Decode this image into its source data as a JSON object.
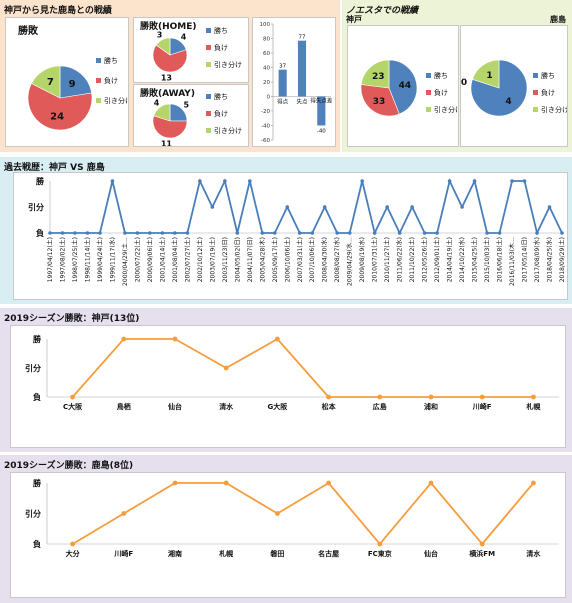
{
  "colors": {
    "win": "#4f81bd",
    "loss": "#e05a5a",
    "draw": "#b5d56a",
    "bar": "#4f81bd",
    "line_blue": "#4a7ebb",
    "line_orange": "#f59d3d",
    "bg_top_left": "#fbe3cc",
    "bg_top_right": "#edf3d6",
    "bg_history": "#d9eef2",
    "bg_season": "#e6e0ee"
  },
  "top_left": {
    "title": "神戸から見た鹿島との戦績",
    "overall": {
      "title": "勝敗",
      "chart_data": {
        "type": "pie",
        "title": "勝敗",
        "categories": [
          "勝ち",
          "負け",
          "引き分け"
        ],
        "values": [
          9,
          24,
          7
        ]
      }
    },
    "home": {
      "title": "勝敗(HOME)",
      "chart_data": {
        "type": "pie",
        "title": "勝敗(HOME)",
        "categories": [
          "勝ち",
          "負け",
          "引き分け"
        ],
        "values": [
          4,
          13,
          3
        ]
      }
    },
    "away": {
      "title": "勝敗(AWAY)",
      "chart_data": {
        "type": "pie",
        "title": "勝敗(AWAY)",
        "categories": [
          "勝ち",
          "負け",
          "引き分け"
        ],
        "values": [
          5,
          11,
          4
        ]
      }
    },
    "goals": {
      "chart_data": {
        "type": "bar",
        "categories": [
          "得点",
          "失点",
          "得失点差"
        ],
        "values": [
          37,
          77,
          -40
        ],
        "ylim": [
          -60,
          100
        ],
        "yticks": [
          -60,
          -40,
          -20,
          0,
          20,
          40,
          60,
          80,
          100
        ],
        "grid": false
      }
    }
  },
  "top_right": {
    "title": "ノエスタでの戦績",
    "kobe": {
      "title": "神戸",
      "chart_data": {
        "type": "pie",
        "title": "神戸",
        "categories": [
          "勝ち",
          "負け",
          "引き分け"
        ],
        "values": [
          44,
          33,
          23
        ]
      }
    },
    "kashima": {
      "title": "鹿島",
      "chart_data": {
        "type": "pie",
        "title": "鹿島",
        "categories": [
          "勝ち",
          "負け",
          "引き分け"
        ],
        "values": [
          4,
          0,
          1
        ]
      }
    }
  },
  "history": {
    "title": "過去戦歴：神戸 VS 鹿島",
    "chart_data": {
      "type": "line",
      "title": "過去戦歴：神戸 VS 鹿島",
      "y_categories": [
        "負",
        "引分",
        "勝"
      ],
      "x": [
        "1997/04/12(土)",
        "1997/08/02(土)",
        "1998/07/25(土)",
        "1998/11/14(土)",
        "1999/04/24(土)",
        "1999/11/17(水)",
        "2000/04/29(土・祝)",
        "2000/07/22(土)",
        "2000/09/06(土)",
        "2001/04/14(土)",
        "2001/08/04(土)",
        "2002/07/27(土)",
        "2002/10/12(土)",
        "2003/07/19(土)",
        "2003/11/23(日)",
        "2004/05/02(日)",
        "2004/11/07(日)",
        "2005/04/28(木)",
        "2005/09/17(土)",
        "2006/10/06(土)",
        "2007/03/31(土)",
        "2007/10/06(土)",
        "2008/04/30(水)",
        "2008/08/27(水)",
        "2009/04/29(水・祝)",
        "2009/08/19(水)",
        "2010/07/31(土)",
        "2010/11/27(土)",
        "2011/06/22(水)",
        "2011/10/22(土)",
        "2012/05/26(土)",
        "2012/09/01(土)",
        "2014/04/19(土)",
        "2014/10/22(水)",
        "2015/04/25(土)",
        "2015/10/03(土)",
        "2016/06/18(土)",
        "2016/11/03(木・祝)",
        "2017/05/14(日)",
        "2017/08/09(水)",
        "2018/04/25(水)",
        "2018/09/29(土)"
      ],
      "x_labels_shown": [
        "1997/04/12(土)",
        "1997/08/02(土)",
        "1998/07/25(土)",
        "1998/11/14(土)",
        "1999/04/24(土)",
        "1999/11/17(水)",
        "2000/04/29(土…",
        "2000/07/22(土)",
        "2000/09/06(土)",
        "2001/04/14(土)",
        "2001/08/04(土)",
        "2002/07/27(土)",
        "2002/10/12(土)",
        "2003/07/19(土)",
        "2003/11/23(日)",
        "2004/05/02(日)",
        "2004/11/07(日)",
        "2005/04/28(木)",
        "2005/09/17(土)",
        "2006/10/06(土)",
        "2007/03/31(土)",
        "2007/10/06(土)",
        "2008/04/30(水)",
        "2008/08/27(水)",
        "2009/04/29(水…",
        "2009/08/19(水)",
        "2010/07/31(土)",
        "2010/11/27(土)",
        "2011/06/22(水)",
        "2011/10/22(土)",
        "2012/05/26(土)",
        "2012/09/01(土)",
        "2014/04/19(土)",
        "2014/10/22(水)",
        "2015/04/25(土)",
        "2015/10/03(土)",
        "2016/06/18(土)",
        "2016/11/03(木…",
        "2017/05/14(日)",
        "2017/08/09(水)",
        "2018/04/25(水)",
        "2018/09/29(土)"
      ],
      "values": [
        0,
        0,
        0,
        0,
        0,
        2,
        0,
        0,
        0,
        0,
        0,
        0,
        2,
        1,
        2,
        0,
        2,
        0,
        0,
        1,
        0,
        0,
        1,
        0,
        0,
        2,
        0,
        1,
        0,
        1,
        0,
        0,
        2,
        1,
        2,
        0,
        0,
        2,
        2,
        0,
        1,
        0
      ]
    }
  },
  "season_kobe": {
    "title": "2019シーズン勝敗：神戸(13位)",
    "chart_data": {
      "type": "line",
      "title": "2019シーズン勝敗：神戸(13位)",
      "y_categories": [
        "負",
        "引分",
        "勝"
      ],
      "x": [
        "C大阪",
        "鳥栖",
        "仙台",
        "清水",
        "G大阪",
        "松本",
        "広島",
        "浦和",
        "川崎F",
        "札幌"
      ],
      "values": [
        0,
        2,
        2,
        1,
        2,
        0,
        0,
        0,
        0,
        0
      ]
    }
  },
  "season_kashima": {
    "title": "2019シーズン勝敗：鹿島(8位)",
    "chart_data": {
      "type": "line",
      "title": "2019シーズン勝敗：鹿島(8位)",
      "y_categories": [
        "負",
        "引分",
        "勝"
      ],
      "x": [
        "大分",
        "川崎F",
        "湘南",
        "札幌",
        "磐田",
        "名古屋",
        "FC東京",
        "仙台",
        "横浜FM",
        "清水"
      ],
      "values": [
        0,
        1,
        2,
        2,
        1,
        2,
        0,
        2,
        0,
        2
      ]
    }
  }
}
